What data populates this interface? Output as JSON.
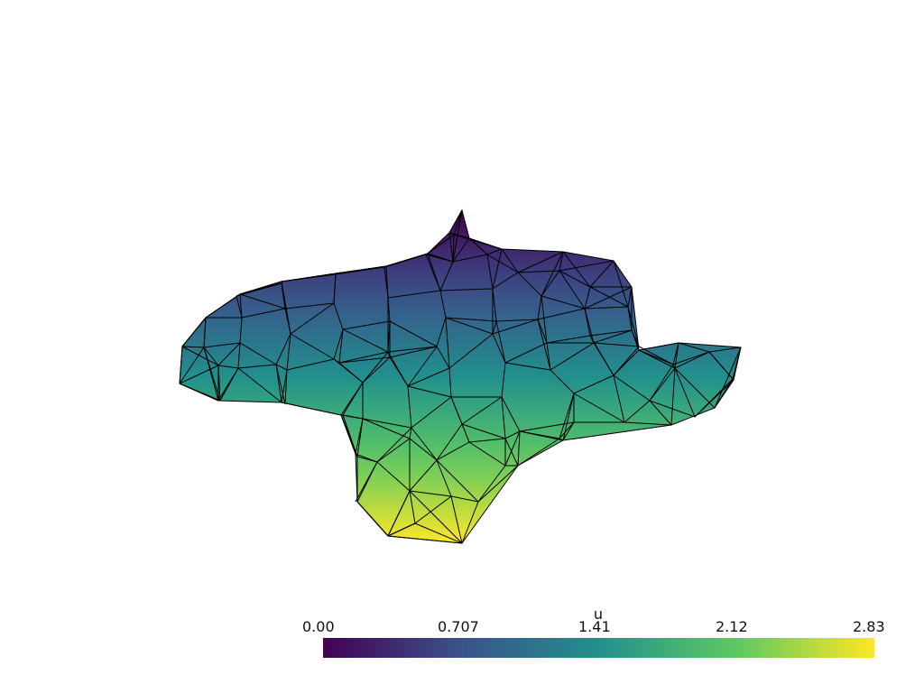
{
  "scalar_bar": {
    "title": "u",
    "labels": [
      "0.00",
      "0.707",
      "1.41",
      "2.12",
      "2.83"
    ],
    "range": [
      0.0,
      2.83
    ],
    "colormap": "viridis",
    "stops": [
      "#440154",
      "#3b528b",
      "#21908d",
      "#5dc963",
      "#fde725"
    ]
  },
  "scene": {
    "background": "#ffffff",
    "edge_color": "#000000",
    "representation": "surface with edges"
  }
}
